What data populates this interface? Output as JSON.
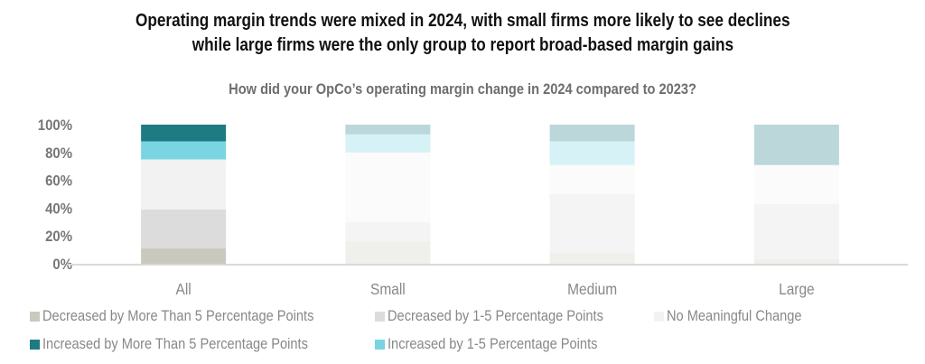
{
  "chart_data": {
    "type": "bar",
    "stacked": true,
    "title": [
      "Operating margin trends were mixed in 2024, with small firms more likely to see declines",
      "while large firms were the only group to report broad-based margin gains"
    ],
    "subtitle": "How did your OpCo’s operating margin change in 2024 compared to 2023?",
    "categories": [
      "All",
      "Small",
      "Medium",
      "Large"
    ],
    "highlighted_category": "All",
    "ylim": [
      0,
      100
    ],
    "yticks": [
      "0%",
      "20%",
      "40%",
      "60%",
      "80%",
      "100%"
    ],
    "grid": false,
    "legend_position": "bottom",
    "series": [
      {
        "name": "Decreased by More Than 5 Percentage Points",
        "color": "#c9c9bd",
        "values": [
          11,
          16,
          8,
          3
        ]
      },
      {
        "name": "Decreased by 1-5 Percentage Points",
        "color": "#dcdcdc",
        "values": [
          28,
          14,
          42,
          40
        ]
      },
      {
        "name": "No Meaningful Change",
        "color": "#f2f2f2",
        "values": [
          36,
          50,
          21,
          28
        ]
      },
      {
        "name": "Increased by 1-5 Percentage Points",
        "color": "#78d5e1",
        "values": [
          13,
          13,
          17,
          0
        ]
      },
      {
        "name": "Increased by More Than 5 Percentage Points",
        "color": "#1f7b82",
        "values": [
          12,
          7,
          12,
          29
        ]
      }
    ]
  }
}
